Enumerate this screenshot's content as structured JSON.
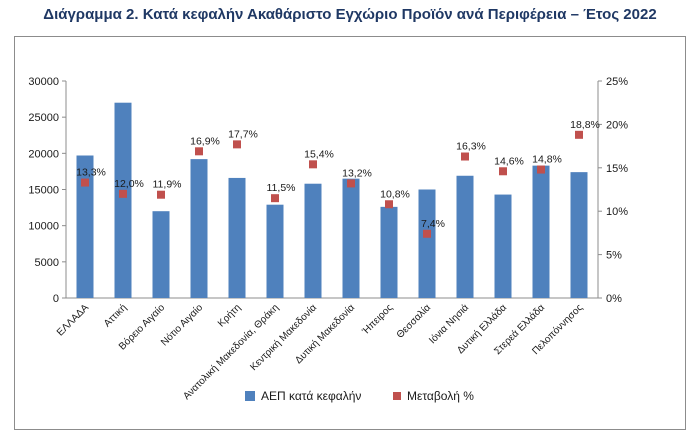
{
  "title": "Διάγραμμα 2. Κατά κεφαλήν Ακαθάριστο Εγχώριο Προϊόν ανά Περιφέρεια – Έτος 2022",
  "chart_data": {
    "type": "bar",
    "categories": [
      "ΕΛΛΑΔΑ",
      "Αττική",
      "Βόρειο Αιγαίο",
      "Νότιο Αιγαίο",
      "Κρήτη",
      "Ανατολική Μακεδονία, Θράκη",
      "Κεντρική Μακεδονία",
      "Δυτική Μακεδονία",
      "Ήπειρος",
      "Θεσσαλία",
      "Ιόνια Νησιά",
      "Δυτική Ελλάδα",
      "Στερεά Ελλάδα",
      "Πελοπόννησος"
    ],
    "series": [
      {
        "name": "ΑΕΠ κατά κεφαλήν",
        "type": "bar",
        "axis": "left",
        "color": "#4f81bd",
        "values": [
          19700,
          27000,
          12000,
          19200,
          16600,
          12900,
          15800,
          16500,
          12600,
          15000,
          16900,
          14300,
          18300,
          17400
        ]
      },
      {
        "name": "Μεταβολή %",
        "type": "scatter",
        "axis": "right",
        "color": "#c0504d",
        "values": [
          13.3,
          12.0,
          11.9,
          16.9,
          17.7,
          11.5,
          15.4,
          13.2,
          10.8,
          7.4,
          16.3,
          14.6,
          14.8,
          18.8
        ],
        "labels": [
          "13,3%",
          "12,0%",
          "11,9%",
          "16,9%",
          "17,7%",
          "11,5%",
          "15,4%",
          "13,2%",
          "10,8%",
          "7,4%",
          "16,3%",
          "14,6%",
          "14,8%",
          "18,8%"
        ]
      }
    ],
    "y_left": {
      "ylim": [
        0,
        30000
      ],
      "ticks": [
        "0",
        "5000",
        "10000",
        "15000",
        "20000",
        "25000",
        "30000"
      ]
    },
    "y_right": {
      "ylim": [
        0,
        25
      ],
      "ticks": [
        "0%",
        "5%",
        "10%",
        "15%",
        "20%",
        "25%"
      ]
    },
    "grid": false,
    "legend": {
      "placement": "bottom",
      "items": [
        "ΑΕΠ κατά κεφαλήν",
        "Μεταβολή %"
      ]
    }
  }
}
